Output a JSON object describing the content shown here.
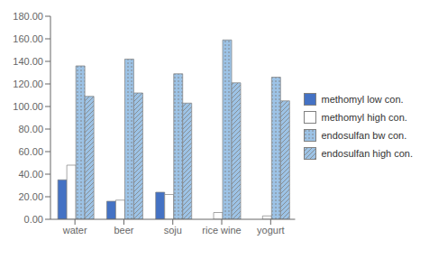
{
  "chart_data": {
    "type": "bar",
    "categories": [
      "water",
      "beer",
      "soju",
      "rice wine",
      "yogurt"
    ],
    "series": [
      {
        "name": "methomyl low con.",
        "color": "#4472C4",
        "values": [
          35,
          16,
          24,
          0,
          0
        ]
      },
      {
        "name": "methomyl high con.",
        "color": "#FFFFFF",
        "values": [
          48,
          17,
          22,
          6,
          3
        ]
      },
      {
        "name": "endosulfan bw con.",
        "color": "#9DC3E6",
        "values": [
          136,
          142,
          129,
          159,
          126
        ]
      },
      {
        "name": "endosulfan high con.",
        "color": "#9DC3E6",
        "values": [
          109,
          112,
          103,
          121,
          105
        ]
      }
    ],
    "ylim": [
      0,
      180
    ],
    "yticks": [
      {
        "value": 0,
        "label": "0.00"
      },
      {
        "value": 20,
        "label": "20.00"
      },
      {
        "value": 40,
        "label": "40.00"
      },
      {
        "value": 60,
        "label": "60.00"
      },
      {
        "value": 80,
        "label": "80.00"
      },
      {
        "value": 100,
        "label": "100.00"
      },
      {
        "value": 120,
        "label": "120.00"
      },
      {
        "value": 140,
        "label": "140.00"
      },
      {
        "value": 160,
        "label": "160.00"
      },
      {
        "value": 180,
        "label": "180.00"
      }
    ],
    "grid": false,
    "legend": "right"
  }
}
